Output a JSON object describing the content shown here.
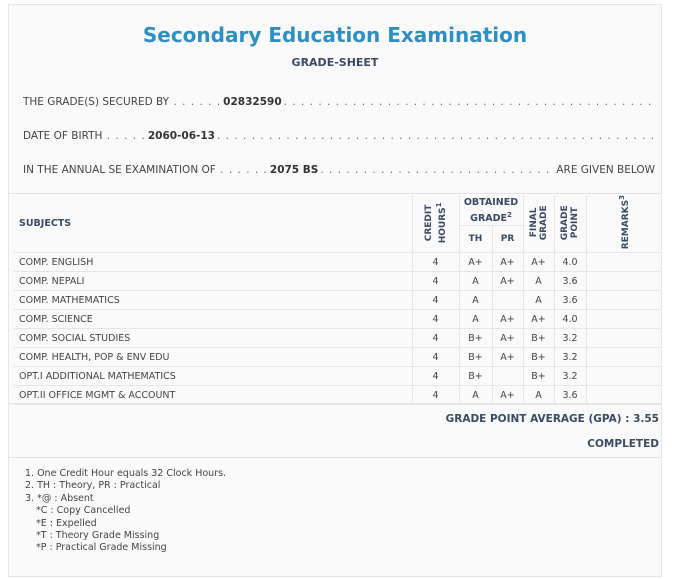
{
  "header": {
    "title": "Secondary Education Examination",
    "subtitle": "GRADE-SHEET"
  },
  "info": {
    "grade_label": "THE GRADE(S) SECURED BY",
    "symbol_no": "02832590",
    "dob_label": "DATE OF BIRTH",
    "dob": "2060-06-13",
    "exam_label": "IN THE ANNUAL SE EXAMINATION OF",
    "exam_year": "2075 BS",
    "exam_tail": "ARE GIVEN BELOW"
  },
  "table": {
    "headers": {
      "subjects": "SUBJECTS",
      "credit_hours": "CREDIT HOURS",
      "credit_sup": "1",
      "obtained_grade": "OBTAINED GRADE",
      "obtained_sup": "2",
      "th": "TH",
      "pr": "PR",
      "final_grade": "FINAL GRADE",
      "grade_point": "GRADE POINT",
      "remarks": "REMARKS",
      "remarks_sup": "3"
    },
    "rows": [
      {
        "subject": "COMP. ENGLISH",
        "credit": "4",
        "th": "A+",
        "pr": "A+",
        "final": "A+",
        "gp": "4.0",
        "remarks": ""
      },
      {
        "subject": "COMP. NEPALI",
        "credit": "4",
        "th": "A",
        "pr": "A+",
        "final": "A",
        "gp": "3.6",
        "remarks": ""
      },
      {
        "subject": "COMP. MATHEMATICS",
        "credit": "4",
        "th": "A",
        "pr": "",
        "final": "A",
        "gp": "3.6",
        "remarks": ""
      },
      {
        "subject": "COMP. SCIENCE",
        "credit": "4",
        "th": "A",
        "pr": "A+",
        "final": "A+",
        "gp": "4.0",
        "remarks": ""
      },
      {
        "subject": "COMP. SOCIAL STUDIES",
        "credit": "4",
        "th": "B+",
        "pr": "A+",
        "final": "B+",
        "gp": "3.2",
        "remarks": ""
      },
      {
        "subject": "COMP. HEALTH, POP & ENV EDU",
        "credit": "4",
        "th": "B+",
        "pr": "A+",
        "final": "B+",
        "gp": "3.2",
        "remarks": ""
      },
      {
        "subject": "OPT.I ADDITIONAL MATHEMATICS",
        "credit": "4",
        "th": "B+",
        "pr": "",
        "final": "B+",
        "gp": "3.2",
        "remarks": ""
      },
      {
        "subject": "OPT.II OFFICE MGMT & ACCOUNT",
        "credit": "4",
        "th": "A",
        "pr": "A+",
        "final": "A",
        "gp": "3.6",
        "remarks": ""
      }
    ]
  },
  "summary": {
    "gpa_label": "GRADE POINT AVERAGE (GPA) :",
    "gpa": "3.55",
    "status": "COMPLETED"
  },
  "notes": [
    "1. One Credit Hour equals 32 Clock Hours.",
    "2. TH : Theory, PR : Practical",
    "3. *@ : Absent",
    "*C : Copy Cancelled",
    "*E : Expelled",
    "*T : Theory Grade Missing",
    "*P : Practical Grade Missing"
  ]
}
